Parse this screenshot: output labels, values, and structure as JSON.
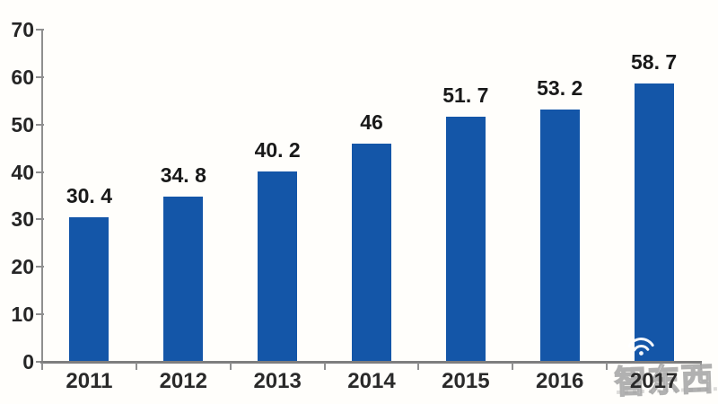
{
  "chart_data": {
    "type": "bar",
    "title": "",
    "xlabel": "",
    "ylabel": "",
    "categories": [
      "2011",
      "2012",
      "2013",
      "2014",
      "2015",
      "2016",
      "2017"
    ],
    "values": [
      30.4,
      34.8,
      40.2,
      46,
      51.7,
      53.2,
      58.7
    ],
    "value_labels": [
      "30. 4",
      "34. 8",
      "40. 2",
      "46",
      "51. 7",
      "53. 2",
      "58. 7"
    ],
    "yticks": [
      0,
      10,
      20,
      30,
      40,
      50,
      60,
      70
    ],
    "ylim": [
      0,
      70
    ],
    "grid": false,
    "legend": "none",
    "bar_color": "#1456a8",
    "axis_color": "#8f8f8f",
    "text_color": "#191919"
  },
  "watermark": {
    "brand": "智东西",
    "icon": "wifi-icon"
  }
}
